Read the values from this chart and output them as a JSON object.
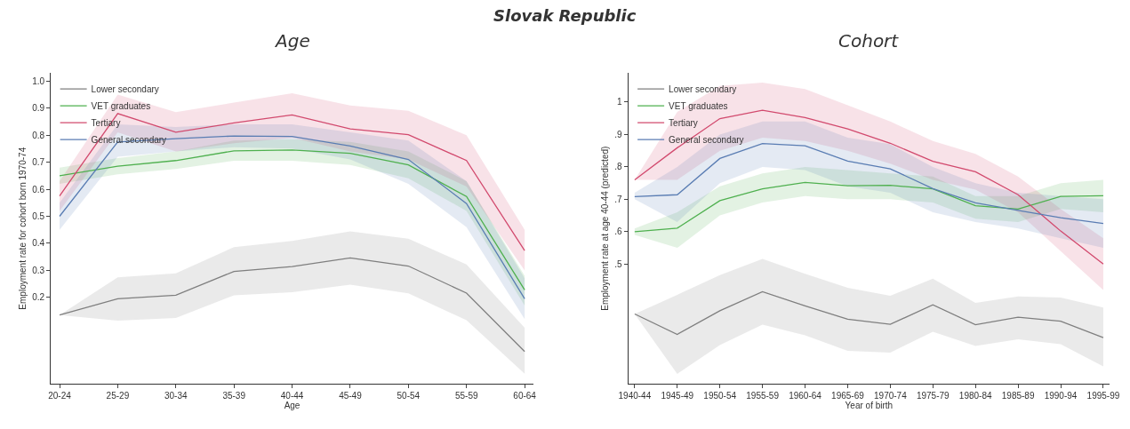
{
  "chart_data": [
    {
      "type": "line",
      "title": "Age",
      "annotations": [
        "Slovak Republic"
      ],
      "xlabel": "Age",
      "ylabel": "Employment rate for cohort born 1970-74",
      "categories": [
        "20-24",
        "25-29",
        "30-34",
        "35-39",
        "40-44",
        "45-49",
        "50-54",
        "55-59",
        "60-64"
      ],
      "ylim": [
        -0.12,
        1.03
      ],
      "yticks": [
        0.2,
        0.3,
        0.4,
        0.5,
        0.6,
        0.7,
        0.8,
        0.9,
        {
          "value": 1.0,
          "label": "1.0"
        }
      ],
      "legend": "top left",
      "marker": "none",
      "line_style": "solid",
      "series": [
        {
          "name": "Lower secondary",
          "color": "#7f7f7f",
          "values": [
            0.135,
            0.195,
            0.208,
            0.296,
            0.314,
            0.346,
            0.316,
            0.216,
            0.0
          ],
          "lower": [
            0.135,
            0.114,
            0.124,
            0.208,
            0.219,
            0.247,
            0.215,
            0.116,
            -0.082
          ],
          "upper": [
            0.135,
            0.274,
            0.289,
            0.386,
            0.409,
            0.444,
            0.417,
            0.322,
            0.088
          ]
        },
        {
          "name": "VET graduates",
          "color": "#4fb04f",
          "values": [
            0.65,
            0.685,
            0.706,
            0.742,
            0.745,
            0.733,
            0.69,
            0.573,
            0.228
          ],
          "lower": [
            0.62,
            0.655,
            0.675,
            0.705,
            0.705,
            0.69,
            0.64,
            0.52,
            0.17
          ],
          "upper": [
            0.68,
            0.715,
            0.74,
            0.78,
            0.785,
            0.775,
            0.74,
            0.63,
            0.28
          ]
        },
        {
          "name": "Tertiary",
          "color": "#d24a6e",
          "values": [
            0.575,
            0.88,
            0.811,
            0.845,
            0.875,
            0.823,
            0.802,
            0.706,
            0.373
          ],
          "lower": [
            0.52,
            0.81,
            0.74,
            0.77,
            0.79,
            0.74,
            0.71,
            0.61,
            0.3
          ],
          "upper": [
            0.63,
            0.95,
            0.885,
            0.92,
            0.955,
            0.91,
            0.89,
            0.8,
            0.45
          ]
        },
        {
          "name": "General secondary",
          "color": "#5a7db3",
          "values": [
            0.5,
            0.775,
            0.787,
            0.797,
            0.795,
            0.76,
            0.71,
            0.547,
            0.195
          ],
          "lower": [
            0.45,
            0.72,
            0.74,
            0.755,
            0.75,
            0.71,
            0.62,
            0.46,
            0.12
          ],
          "upper": [
            0.55,
            0.84,
            0.83,
            0.84,
            0.84,
            0.81,
            0.78,
            0.63,
            0.27
          ]
        }
      ]
    },
    {
      "type": "line",
      "title": "Cohort",
      "xlabel": "Year of birth",
      "ylabel": "Employment rate at age 40-44 (predicted)",
      "categories": [
        "1940-44",
        "1945-49",
        "1950-54",
        "1955-59",
        "1960-64",
        "1965-69",
        "1970-74",
        "1975-79",
        "1980-84",
        "1985-89",
        "1990-94",
        "1995-99"
      ],
      "ylim": [
        0.13,
        1.09
      ],
      "yticks": [
        {
          "value": 0.5,
          "label": ".5"
        },
        {
          "value": 0.6,
          "label": ".6"
        },
        {
          "value": 0.7,
          "label": ".7"
        },
        {
          "value": 0.8,
          "label": ".8"
        },
        {
          "value": 0.9,
          "label": ".9"
        },
        {
          "value": 1,
          "label": "1"
        }
      ],
      "legend": "top left",
      "marker": "none",
      "line_style": "solid",
      "series": [
        {
          "name": "Lower secondary",
          "color": "#7f7f7f",
          "values": [
            0.346,
            0.283,
            0.356,
            0.415,
            0.371,
            0.33,
            0.314,
            0.374,
            0.313,
            0.336,
            0.324,
            0.273
          ],
          "lower": [
            0.346,
            0.161,
            0.25,
            0.313,
            0.28,
            0.232,
            0.227,
            0.291,
            0.247,
            0.268,
            0.253,
            0.184
          ],
          "upper": [
            0.346,
            0.405,
            0.466,
            0.516,
            0.47,
            0.427,
            0.402,
            0.455,
            0.38,
            0.4,
            0.397,
            0.366
          ]
        },
        {
          "name": "VET graduates",
          "color": "#4fb04f",
          "values": [
            0.6,
            0.611,
            0.696,
            0.732,
            0.752,
            0.742,
            0.743,
            0.732,
            0.68,
            0.67,
            0.709,
            0.711
          ],
          "lower": [
            0.59,
            0.55,
            0.65,
            0.69,
            0.71,
            0.7,
            0.7,
            0.69,
            0.64,
            0.63,
            0.67,
            0.66
          ],
          "upper": [
            0.61,
            0.66,
            0.74,
            0.78,
            0.8,
            0.79,
            0.78,
            0.77,
            0.71,
            0.71,
            0.75,
            0.76
          ]
        },
        {
          "name": "Tertiary",
          "color": "#d24a6e",
          "values": [
            0.76,
            0.859,
            0.949,
            0.975,
            0.952,
            0.917,
            0.873,
            0.817,
            0.785,
            0.714,
            0.602,
            0.5
          ],
          "lower": [
            0.76,
            0.76,
            0.85,
            0.89,
            0.88,
            0.85,
            0.81,
            0.76,
            0.73,
            0.66,
            0.54,
            0.42
          ],
          "upper": [
            0.76,
            0.97,
            1.05,
            1.06,
            1.04,
            0.99,
            0.94,
            0.88,
            0.84,
            0.77,
            0.67,
            0.58
          ]
        },
        {
          "name": "General secondary",
          "color": "#5a7db3",
          "values": [
            0.708,
            0.714,
            0.826,
            0.872,
            0.865,
            0.818,
            0.794,
            0.733,
            0.689,
            0.666,
            0.643,
            0.625
          ],
          "lower": [
            0.7,
            0.63,
            0.75,
            0.8,
            0.79,
            0.74,
            0.72,
            0.66,
            0.63,
            0.61,
            0.58,
            0.55
          ],
          "upper": [
            0.72,
            0.8,
            0.9,
            0.94,
            0.94,
            0.89,
            0.87,
            0.8,
            0.75,
            0.72,
            0.71,
            0.7
          ]
        }
      ]
    }
  ]
}
